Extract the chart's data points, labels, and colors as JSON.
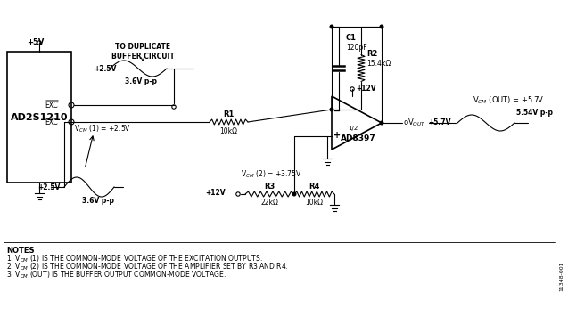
{
  "bg_color": "#ffffff",
  "fig_id": "11348-001",
  "ic_label": "AD2S1210",
  "opamp_label": "AD8397",
  "opamp_half": "1/2",
  "c1_label": "C1",
  "c1_val": "120pF",
  "r1_label": "R1",
  "r1_val": "10kΩ",
  "r2_label": "R2",
  "r2_val": "15.4kΩ",
  "r3_label": "R3",
  "r3_val": "22kΩ",
  "r4_label": "R4",
  "r4_val": "10kΩ",
  "v5": "+5V",
  "v12_top": "+12V",
  "v12_bot": "+12V",
  "vcm1": "V₀₀ (1) = +2.5V",
  "vcm2": "V₀₀ (2) = +3.75V",
  "vcm_out_label": "V₀₀ (OUT) = +5.7V",
  "v25_top": "+2.5V",
  "v36_top": "3.6V p-p",
  "to_dup1": "TO DUPLICATE",
  "to_dup2": "BUFFER CIRCUIT",
  "v25_bot": "+2.5V",
  "v36_bot": "3.6V p-p",
  "v57": "+5.7V",
  "v554": "5.54V p-p",
  "vout_label": "oV₀₀₀",
  "exc_bar": "EXC",
  "exc": "EXC",
  "notes_title": "NOTES",
  "note1": "1. V₀₀ (1) IS THE COMMON-MODE VOLTAGE OF THE EXCITATION OUTPUTS.",
  "note2": "2. V₀₀ (2) IS THE COMMON-MODE VOLTAGE OF THE AMPLIFIER SET BY R3 AND R4.",
  "note3": "3. V₀₀ (OUT) IS THE BUFFER OUTPUT COMMON-MODE VOLTAGE."
}
